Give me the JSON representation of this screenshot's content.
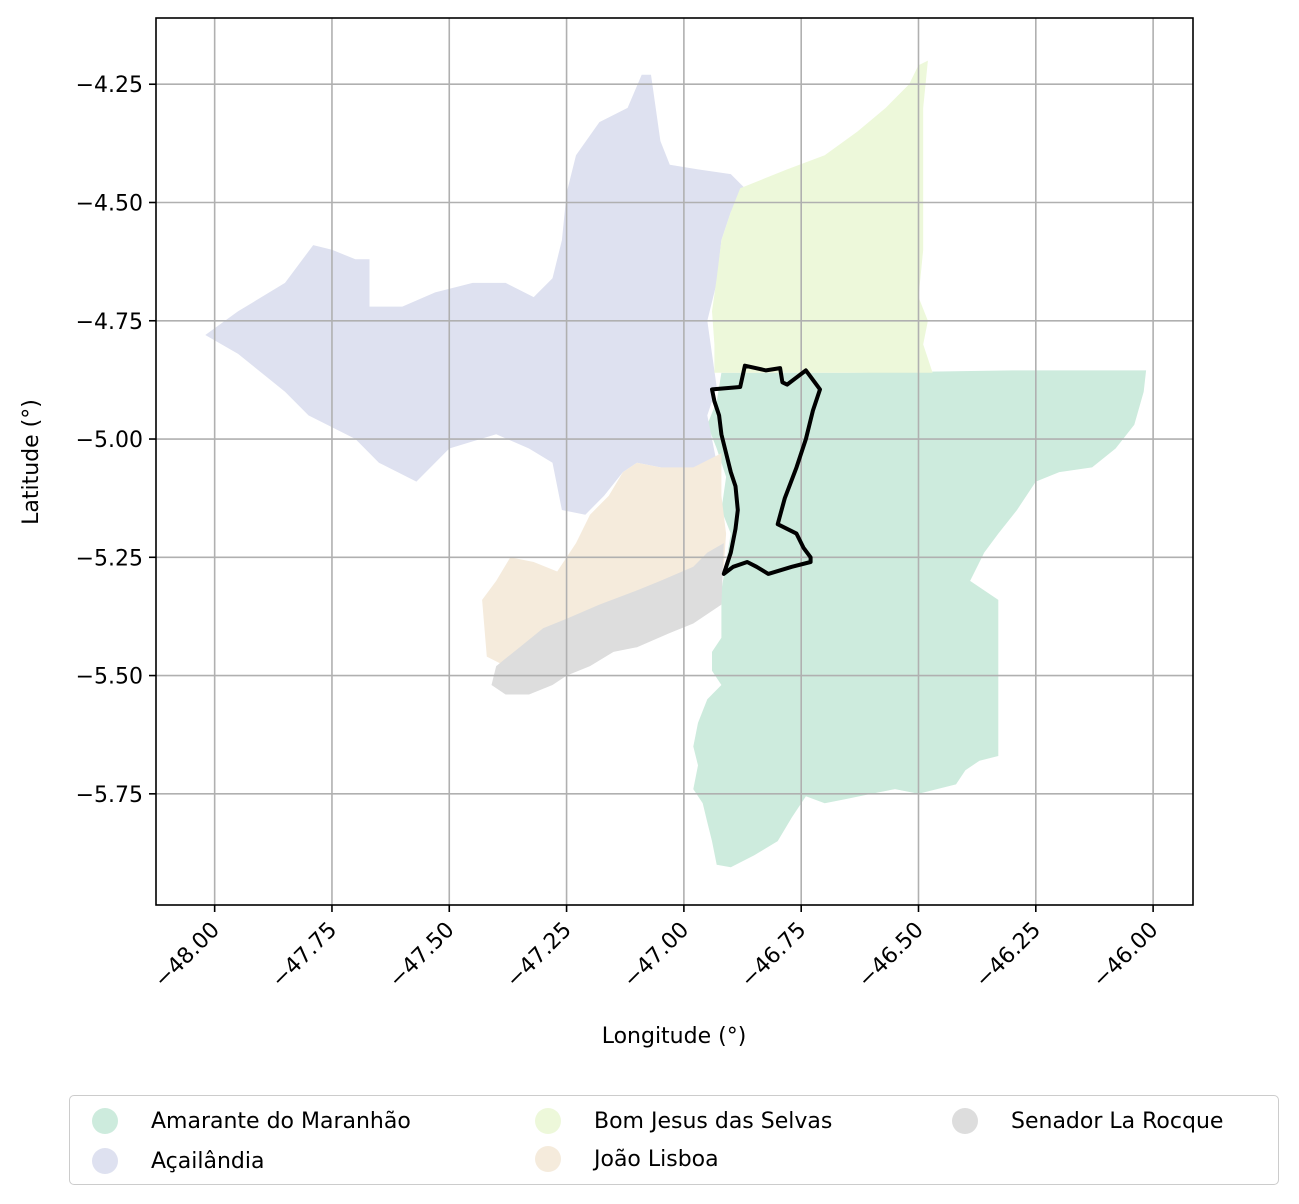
{
  "chart_data": {
    "type": "map",
    "xlabel": "Longitude (°)",
    "ylabel": "Latitude (°)",
    "xlim": [
      -48.125,
      -45.915
    ],
    "ylim": [
      -5.985,
      -4.11
    ],
    "grid": true,
    "xticks": [
      -48.0,
      -47.75,
      -47.5,
      -47.25,
      -47.0,
      -46.75,
      -46.5,
      -46.25,
      -46.0
    ],
    "xtick_labels": [
      "−48.00",
      "−47.75",
      "−47.50",
      "−47.25",
      "−47.00",
      "−46.75",
      "−46.50",
      "−46.25",
      "−46.00"
    ],
    "yticks": [
      -4.25,
      -4.5,
      -4.75,
      -5.0,
      -5.25,
      -5.5,
      -5.75
    ],
    "ytick_labels": [
      "−4.25",
      "−4.50",
      "−4.75",
      "−5.00",
      "−5.25",
      "−5.50",
      "−5.75"
    ],
    "legend_position": "bottom",
    "regions": [
      {
        "name": "Amarante do Maranhão",
        "color": "#cdebdd",
        "polygon": [
          [
            -46.92,
            -4.86
          ],
          [
            -46.65,
            -4.86
          ],
          [
            -46.3,
            -4.855
          ],
          [
            -46.015,
            -4.855
          ],
          [
            -46.02,
            -4.9
          ],
          [
            -46.04,
            -4.97
          ],
          [
            -46.08,
            -5.02
          ],
          [
            -46.13,
            -5.06
          ],
          [
            -46.2,
            -5.07
          ],
          [
            -46.25,
            -5.09
          ],
          [
            -46.29,
            -5.15
          ],
          [
            -46.33,
            -5.2
          ],
          [
            -46.36,
            -5.24
          ],
          [
            -46.38,
            -5.28
          ],
          [
            -46.39,
            -5.3
          ],
          [
            -46.33,
            -5.34
          ],
          [
            -46.33,
            -5.67
          ],
          [
            -46.37,
            -5.68
          ],
          [
            -46.4,
            -5.7
          ],
          [
            -46.42,
            -5.73
          ],
          [
            -46.5,
            -5.75
          ],
          [
            -46.55,
            -5.74
          ],
          [
            -46.6,
            -5.75
          ],
          [
            -46.65,
            -5.76
          ],
          [
            -46.7,
            -5.77
          ],
          [
            -46.74,
            -5.755
          ],
          [
            -46.77,
            -5.8
          ],
          [
            -46.8,
            -5.85
          ],
          [
            -46.85,
            -5.88
          ],
          [
            -46.9,
            -5.905
          ],
          [
            -46.93,
            -5.9
          ],
          [
            -46.94,
            -5.85
          ],
          [
            -46.95,
            -5.81
          ],
          [
            -46.96,
            -5.77
          ],
          [
            -46.98,
            -5.74
          ],
          [
            -46.97,
            -5.69
          ],
          [
            -46.98,
            -5.65
          ],
          [
            -46.97,
            -5.6
          ],
          [
            -46.95,
            -5.55
          ],
          [
            -46.92,
            -5.52
          ],
          [
            -46.94,
            -5.49
          ],
          [
            -46.94,
            -5.45
          ],
          [
            -46.92,
            -5.42
          ],
          [
            -46.92,
            -5.32
          ],
          [
            -46.91,
            -5.26
          ],
          [
            -46.9,
            -5.2
          ],
          [
            -46.92,
            -5.15
          ],
          [
            -46.91,
            -5.08
          ],
          [
            -46.93,
            -5.02
          ],
          [
            -46.95,
            -4.97
          ],
          [
            -46.93,
            -4.92
          ]
        ]
      },
      {
        "name": "Açailândia",
        "color": "#dee1f0",
        "polygon": [
          [
            -48.02,
            -4.78
          ],
          [
            -47.95,
            -4.73
          ],
          [
            -47.85,
            -4.67
          ],
          [
            -47.79,
            -4.59
          ],
          [
            -47.75,
            -4.6
          ],
          [
            -47.7,
            -4.62
          ],
          [
            -47.67,
            -4.62
          ],
          [
            -47.67,
            -4.72
          ],
          [
            -47.6,
            -4.72
          ],
          [
            -47.53,
            -4.69
          ],
          [
            -47.45,
            -4.67
          ],
          [
            -47.38,
            -4.67
          ],
          [
            -47.32,
            -4.7
          ],
          [
            -47.28,
            -4.66
          ],
          [
            -47.26,
            -4.58
          ],
          [
            -47.25,
            -4.48
          ],
          [
            -47.23,
            -4.4
          ],
          [
            -47.18,
            -4.33
          ],
          [
            -47.12,
            -4.3
          ],
          [
            -47.09,
            -4.23
          ],
          [
            -47.07,
            -4.23
          ],
          [
            -47.06,
            -4.3
          ],
          [
            -47.05,
            -4.37
          ],
          [
            -47.03,
            -4.42
          ],
          [
            -46.97,
            -4.43
          ],
          [
            -46.9,
            -4.44
          ],
          [
            -46.87,
            -4.47
          ],
          [
            -46.9,
            -4.52
          ],
          [
            -46.92,
            -4.58
          ],
          [
            -46.93,
            -4.67
          ],
          [
            -46.95,
            -4.75
          ],
          [
            -46.94,
            -4.82
          ],
          [
            -46.93,
            -4.89
          ],
          [
            -46.95,
            -4.95
          ],
          [
            -46.93,
            -5.05
          ],
          [
            -46.98,
            -5.07
          ],
          [
            -47.05,
            -5.06
          ],
          [
            -47.1,
            -5.05
          ],
          [
            -47.13,
            -5.07
          ],
          [
            -47.17,
            -5.12
          ],
          [
            -47.21,
            -5.16
          ],
          [
            -47.26,
            -5.15
          ],
          [
            -47.28,
            -5.05
          ],
          [
            -47.33,
            -5.02
          ],
          [
            -47.4,
            -4.99
          ],
          [
            -47.5,
            -5.02
          ],
          [
            -47.57,
            -5.09
          ],
          [
            -47.65,
            -5.05
          ],
          [
            -47.7,
            -5.0
          ],
          [
            -47.8,
            -4.95
          ],
          [
            -47.85,
            -4.9
          ],
          [
            -47.95,
            -4.82
          ]
        ]
      },
      {
        "name": "Bom Jesus das Selvas",
        "color": "#edf8da",
        "polygon": [
          [
            -46.935,
            -4.86
          ],
          [
            -46.47,
            -4.86
          ],
          [
            -46.49,
            -4.8
          ],
          [
            -46.48,
            -4.75
          ],
          [
            -46.5,
            -4.7
          ],
          [
            -46.49,
            -4.6
          ],
          [
            -46.49,
            -4.5
          ],
          [
            -46.49,
            -4.4
          ],
          [
            -46.49,
            -4.3
          ],
          [
            -46.48,
            -4.2
          ],
          [
            -46.5,
            -4.21
          ],
          [
            -46.52,
            -4.25
          ],
          [
            -46.57,
            -4.3
          ],
          [
            -46.63,
            -4.35
          ],
          [
            -46.7,
            -4.4
          ],
          [
            -46.78,
            -4.43
          ],
          [
            -46.83,
            -4.45
          ],
          [
            -46.88,
            -4.47
          ],
          [
            -46.9,
            -4.52
          ],
          [
            -46.92,
            -4.58
          ],
          [
            -46.93,
            -4.66
          ],
          [
            -46.94,
            -4.73
          ],
          [
            -46.935,
            -4.8
          ]
        ]
      },
      {
        "name": "João Lisboa",
        "color": "#f5ebdc",
        "polygon": [
          [
            -46.92,
            -5.03
          ],
          [
            -46.98,
            -5.06
          ],
          [
            -47.05,
            -5.06
          ],
          [
            -47.1,
            -5.05
          ],
          [
            -47.13,
            -5.07
          ],
          [
            -47.16,
            -5.12
          ],
          [
            -47.2,
            -5.16
          ],
          [
            -47.23,
            -5.22
          ],
          [
            -47.27,
            -5.28
          ],
          [
            -47.32,
            -5.26
          ],
          [
            -47.37,
            -5.25
          ],
          [
            -47.4,
            -5.3
          ],
          [
            -47.43,
            -5.34
          ],
          [
            -47.42,
            -5.46
          ],
          [
            -47.38,
            -5.48
          ],
          [
            -47.3,
            -5.42
          ],
          [
            -47.22,
            -5.37
          ],
          [
            -47.12,
            -5.35
          ],
          [
            -47.05,
            -5.32
          ],
          [
            -46.97,
            -5.28
          ],
          [
            -46.915,
            -5.27
          ],
          [
            -46.91,
            -5.2
          ],
          [
            -46.92,
            -5.12
          ]
        ]
      },
      {
        "name": "Senador La Rocque",
        "color": "#dddddd",
        "polygon": [
          [
            -46.915,
            -5.22
          ],
          [
            -46.92,
            -5.35
          ],
          [
            -46.98,
            -5.39
          ],
          [
            -47.03,
            -5.41
          ],
          [
            -47.1,
            -5.44
          ],
          [
            -47.15,
            -5.45
          ],
          [
            -47.2,
            -5.48
          ],
          [
            -47.25,
            -5.5
          ],
          [
            -47.28,
            -5.52
          ],
          [
            -47.33,
            -5.54
          ],
          [
            -47.38,
            -5.54
          ],
          [
            -47.41,
            -5.52
          ],
          [
            -47.4,
            -5.48
          ],
          [
            -47.35,
            -5.44
          ],
          [
            -47.3,
            -5.4
          ],
          [
            -47.25,
            -5.38
          ],
          [
            -47.18,
            -5.35
          ],
          [
            -47.1,
            -5.32
          ],
          [
            -47.05,
            -5.3
          ],
          [
            -46.98,
            -5.27
          ],
          [
            -46.95,
            -5.24
          ]
        ]
      }
    ],
    "outline": {
      "color": "#000000",
      "polygon": [
        [
          -46.94,
          -4.895
        ],
        [
          -46.88,
          -4.89
        ],
        [
          -46.87,
          -4.845
        ],
        [
          -46.825,
          -4.855
        ],
        [
          -46.795,
          -4.85
        ],
        [
          -46.79,
          -4.88
        ],
        [
          -46.78,
          -4.885
        ],
        [
          -46.74,
          -4.855
        ],
        [
          -46.71,
          -4.895
        ],
        [
          -46.725,
          -4.94
        ],
        [
          -46.74,
          -5.0
        ],
        [
          -46.76,
          -5.06
        ],
        [
          -46.785,
          -5.125
        ],
        [
          -46.8,
          -5.18
        ],
        [
          -46.76,
          -5.2
        ],
        [
          -46.745,
          -5.23
        ],
        [
          -46.73,
          -5.25
        ],
        [
          -46.73,
          -5.26
        ],
        [
          -46.77,
          -5.27
        ],
        [
          -46.82,
          -5.285
        ],
        [
          -46.845,
          -5.27
        ],
        [
          -46.865,
          -5.26
        ],
        [
          -46.895,
          -5.27
        ],
        [
          -46.915,
          -5.285
        ],
        [
          -46.9,
          -5.24
        ],
        [
          -46.89,
          -5.19
        ],
        [
          -46.885,
          -5.15
        ],
        [
          -46.89,
          -5.1
        ],
        [
          -46.9,
          -5.07
        ],
        [
          -46.91,
          -5.03
        ],
        [
          -46.92,
          -4.99
        ],
        [
          -46.925,
          -4.95
        ],
        [
          -46.935,
          -4.92
        ]
      ]
    }
  },
  "legend": {
    "items": [
      {
        "label": "Amarante do Maranhão",
        "color": "#cdebdd"
      },
      {
        "label": "Açailândia",
        "color": "#dee1f0"
      },
      {
        "label": "Bom Jesus das Selvas",
        "color": "#edf8da"
      },
      {
        "label": "João Lisboa",
        "color": "#f5ebdc"
      },
      {
        "label": "Senador La Rocque",
        "color": "#dddddd"
      }
    ]
  }
}
